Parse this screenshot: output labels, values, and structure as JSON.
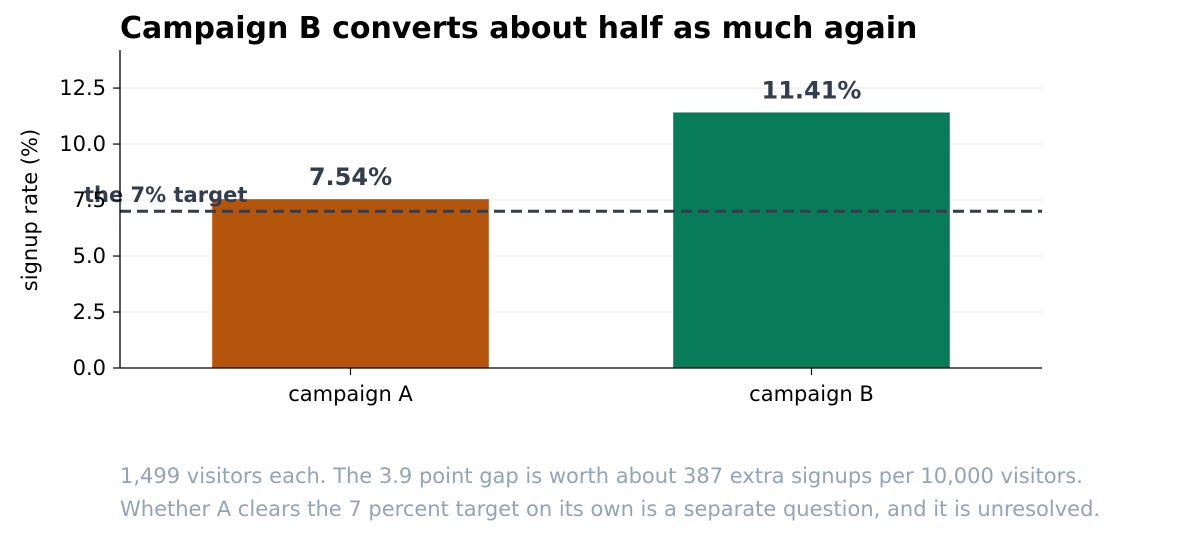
{
  "chart_data": {
    "type": "bar",
    "title": "Campaign B converts about half as much again",
    "ylabel": "signup rate (%)",
    "xlabel": "",
    "categories": [
      "campaign A",
      "campaign B"
    ],
    "values": [
      7.54,
      11.41
    ],
    "value_labels": [
      "7.54%",
      "11.41%"
    ],
    "bar_colors": [
      "#b5540b",
      "#087b59"
    ],
    "ylim": [
      0,
      14.2
    ],
    "yticks": [
      0.0,
      2.5,
      5.0,
      7.5,
      10.0,
      12.5
    ],
    "ytick_labels": [
      "0.0",
      "2.5",
      "5.0",
      "7.5",
      "10.0",
      "12.5"
    ],
    "grid": "horizontal",
    "reference_line": {
      "value": 7,
      "label": "the 7% target",
      "style": "dashed",
      "color": "#333d4d"
    }
  },
  "caption": {
    "line1": "1,499 visitors each. The 3.9 point gap is worth about 387 extra signups per 10,000 visitors.",
    "line2": "Whether A clears the 7 percent target on its own is a separate question, and it is unresolved."
  }
}
